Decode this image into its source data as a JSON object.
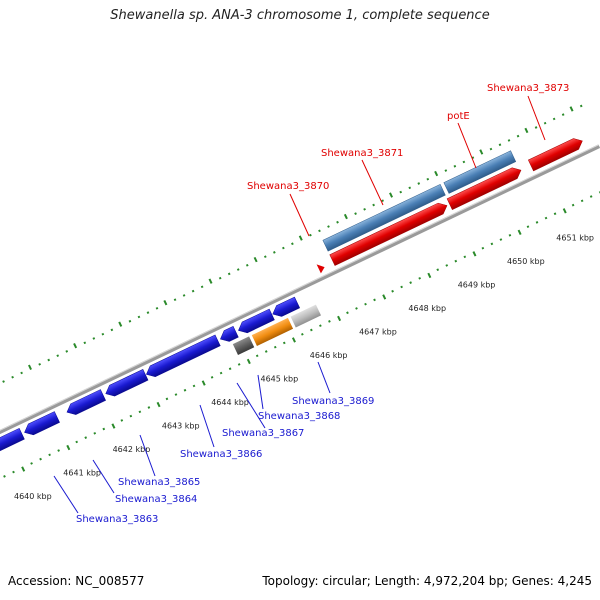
{
  "title": "Shewanella sp. ANA-3 chromosome 1, complete sequence",
  "footer": {
    "accession": "Accession: NC_008577",
    "stats": "Topology: circular; Length: 4,972,204 bp; Genes: 4,245"
  },
  "scale": {
    "ticks": [
      {
        "label": "4640 kbp"
      },
      {
        "label": "4641 kbp"
      },
      {
        "label": "4642 kbp"
      },
      {
        "label": "4643 kbp"
      },
      {
        "label": "4644 kbp"
      },
      {
        "label": "4645 kbp"
      },
      {
        "label": "4646 kbp"
      },
      {
        "label": "4647 kbp"
      },
      {
        "label": "4648 kbp"
      },
      {
        "label": "4649 kbp"
      },
      {
        "label": "4650 kbp"
      },
      {
        "label": "4651 kbp"
      }
    ]
  },
  "genes": [
    {
      "label": "Shewana3_3863",
      "strand": "minus",
      "color": "#1a1ad0"
    },
    {
      "label": "Shewana3_3864",
      "strand": "minus",
      "color": "#1a1ad0"
    },
    {
      "label": "Shewana3_3865",
      "strand": "minus",
      "color": "#1a1ad0"
    },
    {
      "label": "Shewana3_3866",
      "strand": "minus",
      "color": "#1a1ad0"
    },
    {
      "label": "Shewana3_3867",
      "strand": "minus",
      "color": "#1a1ad0"
    },
    {
      "label": "Shewana3_3868",
      "strand": "minus",
      "color": "#1a1ad0"
    },
    {
      "label": "Shewana3_3869",
      "strand": "minus",
      "color": "#1a1ad0"
    },
    {
      "label": "Shewana3_3870",
      "strand": "plus",
      "color": "#e00000"
    },
    {
      "label": "Shewana3_3871",
      "strand": "plus",
      "color": "#e00000"
    },
    {
      "label": "potE",
      "strand": "plus",
      "color": "#e00000"
    },
    {
      "label": "Shewana3_3873",
      "strand": "plus",
      "color": "#e00000"
    }
  ],
  "colors": {
    "forward_cds": "#e00000",
    "reverse_cds": "#1a1ad0",
    "forward_gene": "#4a7fb5",
    "orange_feature": "#f08c10",
    "grey_feature": "#bdbdbd",
    "dark_feature": "#606060",
    "backbone": "#9a9a9a",
    "ruler": "#2a8a2a"
  }
}
